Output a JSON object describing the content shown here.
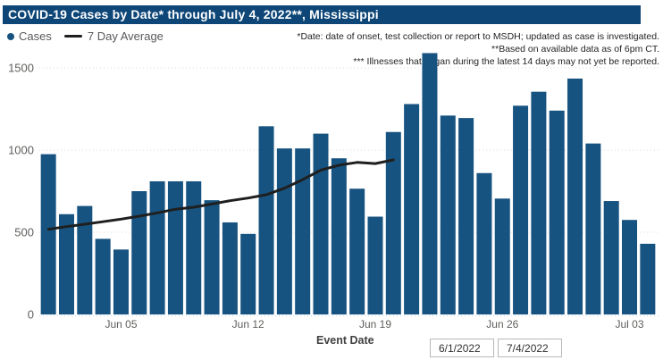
{
  "header": {
    "title": "COVID-19 Cases by Date* through July 4, 2022**, Mississippi"
  },
  "legend": {
    "cases_label": "Cases",
    "average_label": "7 Day Average"
  },
  "notes": [
    "*Date: date of onset, test collection or report to MSDH; updated as case is investigated.",
    "**Based on available data as of 6pm CT.",
    "*** Illnesses that began during the latest 14 days may not yet be reported."
  ],
  "x_axis_title": "Event Date",
  "filters": {
    "start_date": "6/1/2022",
    "end_date": "7/4/2022"
  },
  "colors": {
    "header_bg": "#0D4677",
    "bar": "#175380",
    "line": "#1F1F1F",
    "axis_text": "#605E5C",
    "grid": "#D9D9D9",
    "baseline": "#BCD4E8",
    "note_text": "#252423"
  },
  "chart_data": {
    "type": "bar",
    "title": "COVID-19 Cases by Date* through July 4, 2022**, Mississippi",
    "xlabel": "Event Date",
    "ylabel": "",
    "ylim": [
      0,
      1600
    ],
    "y_ticks": [
      0,
      500,
      1000,
      1500
    ],
    "grid": "dotted-horizontal",
    "legend_position": "top-left",
    "dates": [
      "Jun 1",
      "Jun 2",
      "Jun 3",
      "Jun 4",
      "Jun 5",
      "Jun 6",
      "Jun 7",
      "Jun 8",
      "Jun 9",
      "Jun 10",
      "Jun 11",
      "Jun 12",
      "Jun 13",
      "Jun 14",
      "Jun 15",
      "Jun 16",
      "Jun 17",
      "Jun 18",
      "Jun 19",
      "Jun 20",
      "Jun 21",
      "Jun 22",
      "Jun 23",
      "Jun 24",
      "Jun 25",
      "Jun 26",
      "Jun 27",
      "Jun 28",
      "Jun 29",
      "Jun 30",
      "Jul 1",
      "Jul 2",
      "Jul 3",
      "Jul 4"
    ],
    "x_tick_labels": [
      {
        "index": 4,
        "label": "Jun 05"
      },
      {
        "index": 11,
        "label": "Jun 12"
      },
      {
        "index": 18,
        "label": "Jun 19"
      },
      {
        "index": 25,
        "label": "Jun 26"
      },
      {
        "index": 32,
        "label": "Jul 03"
      }
    ],
    "series": [
      {
        "name": "Cases",
        "type": "bar",
        "values": [
          975,
          610,
          660,
          460,
          395,
          750,
          810,
          810,
          810,
          695,
          560,
          490,
          1145,
          1010,
          1010,
          1100,
          950,
          765,
          595,
          1110,
          1280,
          1590,
          1210,
          1195,
          860,
          705,
          1270,
          1355,
          1240,
          1435,
          1040,
          690,
          575,
          430
        ]
      },
      {
        "name": "7 Day Average",
        "type": "line",
        "values": [
          518,
          534,
          549,
          564,
          580,
          598,
          618,
          640,
          652,
          672,
          692,
          708,
          728,
          768,
          820,
          878,
          908,
          925,
          918,
          940
        ]
      }
    ]
  }
}
